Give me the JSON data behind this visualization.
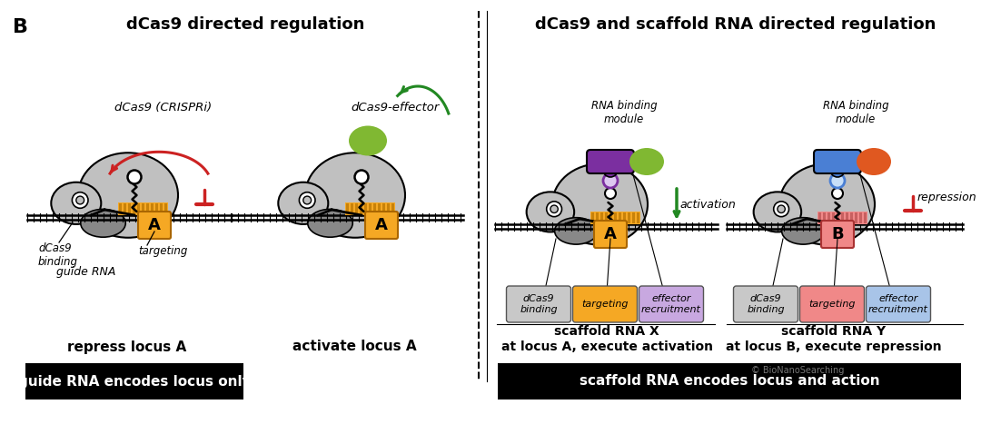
{
  "title_left": "dCas9 directed regulation",
  "title_right": "dCas9 and scaffold RNA directed regulation",
  "panel_label": "B",
  "bg_color": "#ffffff",
  "gray_body": "#c0c0c0",
  "gray_lobe": "#b0b0b0",
  "gray_dark": "#888888",
  "orange_target": "#f5a824",
  "pink_target": "#f08888",
  "purple_module": "#7b2fa0",
  "blue_module": "#4a7fd4",
  "green_effector": "#80b832",
  "orange_effector": "#e05820",
  "red_color": "#cc2222",
  "green_color": "#228822",
  "label1_sub": "dCas9 (CRISPRi)",
  "label2_sub": "dCas9-effector",
  "label3_sub": "RNA binding\nmodule",
  "label4_sub": "RNA binding\nmodule",
  "activation_text": "activation",
  "repression_text": "repression",
  "dcas9_binding_text": "dCas9\nbinding",
  "targeting_text": "targeting",
  "effector_text": "effector\nrecruitment",
  "guide_rna_text": "guide RNA",
  "scaffold_x_text": "scaffold RNA X",
  "scaffold_y_text": "scaffold RNA Y",
  "repress_text": "repress locus A",
  "activate_text": "activate locus A",
  "at_locus_a_text": "at locus A, execute activation",
  "at_locus_b_text": "at locus B, execute repression",
  "bottom_left_text": "guide RNA encodes locus only",
  "bottom_right_text": "scaffold RNA encodes locus and action",
  "bionano_text": "© BioNanoSearching"
}
